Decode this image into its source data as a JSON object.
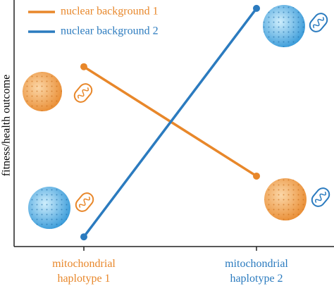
{
  "chart_data": {
    "type": "line",
    "y_label": "fitness/health outcome",
    "categories": [
      "mitochondrial haplotype 1",
      "mitochondrial haplotype 2"
    ],
    "series": [
      {
        "name": "nuclear background 1",
        "color": "#e8872a",
        "values": [
          0.74,
          0.29
        ]
      },
      {
        "name": "nuclear background 2",
        "color": "#2b7bbf",
        "values": [
          0.04,
          0.98
        ]
      }
    ],
    "ylim": [
      0,
      1
    ],
    "legend": "upper-left"
  }
}
